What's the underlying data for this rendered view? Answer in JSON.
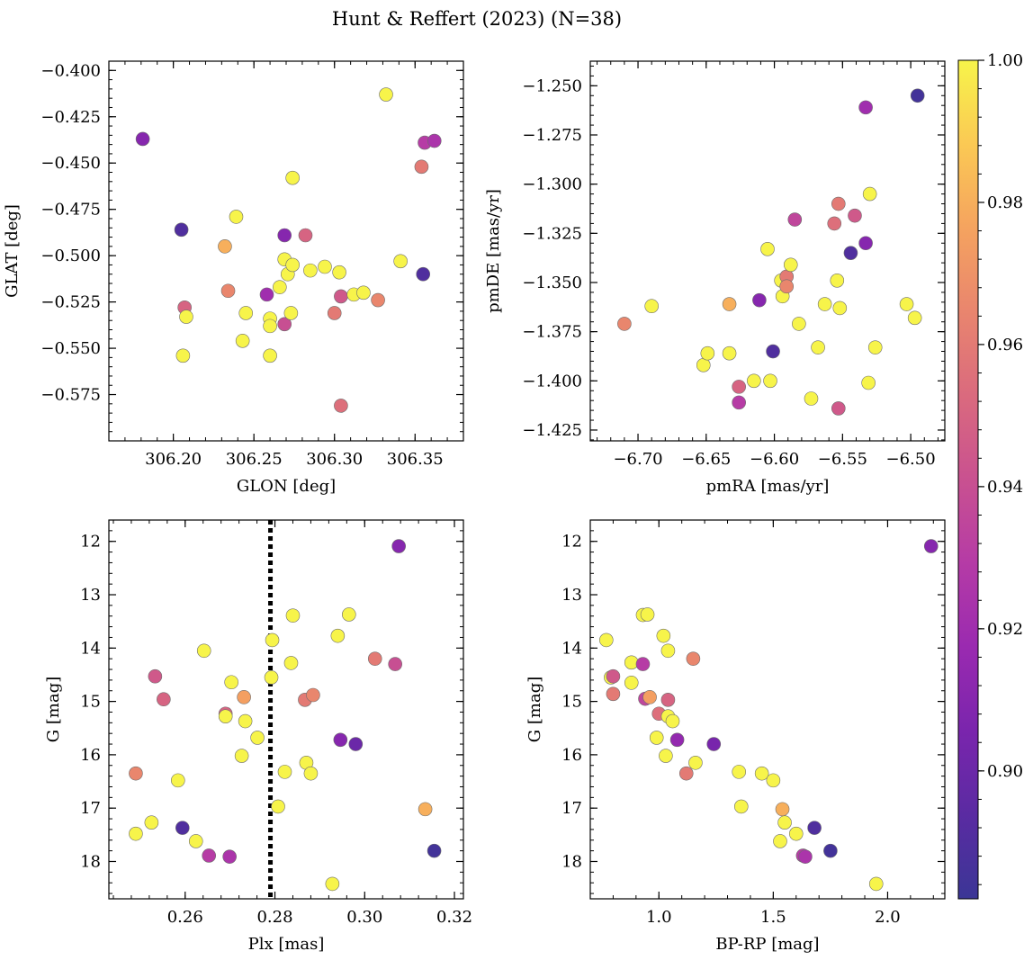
{
  "figure": {
    "title": "Hunt & Reffert (2023) (N=38)"
  },
  "colorbar": {
    "min": 0.882,
    "max": 1.0,
    "ticks": [
      0.9,
      0.92,
      0.94,
      0.96,
      0.98,
      1.0
    ],
    "tick_labels": [
      "0.90",
      "0.92",
      "0.94",
      "0.96",
      "0.98",
      "1.00"
    ],
    "colormap": "plasma"
  },
  "chart_data": [
    {
      "id": "glon-glat",
      "type": "scatter",
      "xlabel": "GLON [deg]",
      "ylabel": "GLAT [deg]",
      "xlim": [
        306.16,
        306.38
      ],
      "ylim": [
        -0.6,
        -0.395
      ],
      "y_inverted": false,
      "xticks": [
        306.2,
        306.25,
        306.3,
        306.35
      ],
      "xtick_labels": [
        "306.20",
        "306.25",
        "306.30",
        "306.35"
      ],
      "yticks": [
        -0.4,
        -0.425,
        -0.45,
        -0.475,
        -0.5,
        -0.525,
        -0.55,
        -0.575
      ],
      "ytick_labels": [
        "−0.400",
        "−0.425",
        "−0.450",
        "−0.475",
        "−0.500",
        "−0.525",
        "−0.550",
        "−0.575"
      ],
      "points": [
        {
          "x": 306.181,
          "y": -0.437,
          "c": 0.91
        },
        {
          "x": 306.205,
          "y": -0.486,
          "c": 0.89
        },
        {
          "x": 306.207,
          "y": -0.528,
          "c": 0.95
        },
        {
          "x": 306.208,
          "y": -0.533,
          "c": 1.0
        },
        {
          "x": 306.206,
          "y": -0.554,
          "c": 1.0
        },
        {
          "x": 306.232,
          "y": -0.495,
          "c": 0.98
        },
        {
          "x": 306.234,
          "y": -0.519,
          "c": 0.965
        },
        {
          "x": 306.239,
          "y": -0.479,
          "c": 1.0
        },
        {
          "x": 306.243,
          "y": -0.546,
          "c": 1.0
        },
        {
          "x": 306.245,
          "y": -0.531,
          "c": 1.0
        },
        {
          "x": 306.258,
          "y": -0.521,
          "c": 0.92
        },
        {
          "x": 306.26,
          "y": -0.534,
          "c": 1.0
        },
        {
          "x": 306.26,
          "y": -0.538,
          "c": 1.0
        },
        {
          "x": 306.26,
          "y": -0.554,
          "c": 1.0
        },
        {
          "x": 306.266,
          "y": -0.517,
          "c": 1.0
        },
        {
          "x": 306.269,
          "y": -0.489,
          "c": 0.91
        },
        {
          "x": 306.269,
          "y": -0.502,
          "c": 1.0
        },
        {
          "x": 306.269,
          "y": -0.537,
          "c": 0.94
        },
        {
          "x": 306.271,
          "y": -0.51,
          "c": 1.0
        },
        {
          "x": 306.273,
          "y": -0.531,
          "c": 1.0
        },
        {
          "x": 306.274,
          "y": -0.505,
          "c": 1.0
        },
        {
          "x": 306.274,
          "y": -0.458,
          "c": 1.0
        },
        {
          "x": 306.282,
          "y": -0.489,
          "c": 0.95
        },
        {
          "x": 306.285,
          "y": -0.508,
          "c": 1.0
        },
        {
          "x": 306.294,
          "y": -0.506,
          "c": 1.0
        },
        {
          "x": 306.3,
          "y": -0.531,
          "c": 0.96
        },
        {
          "x": 306.303,
          "y": -0.509,
          "c": 1.0
        },
        {
          "x": 306.304,
          "y": -0.522,
          "c": 0.945
        },
        {
          "x": 306.304,
          "y": -0.581,
          "c": 0.955
        },
        {
          "x": 306.312,
          "y": -0.521,
          "c": 1.0
        },
        {
          "x": 306.318,
          "y": -0.52,
          "c": 1.0
        },
        {
          "x": 306.327,
          "y": -0.524,
          "c": 0.965
        },
        {
          "x": 306.332,
          "y": -0.413,
          "c": 1.0
        },
        {
          "x": 306.341,
          "y": -0.503,
          "c": 1.0
        },
        {
          "x": 306.354,
          "y": -0.452,
          "c": 0.96
        },
        {
          "x": 306.355,
          "y": -0.51,
          "c": 0.89
        },
        {
          "x": 306.356,
          "y": -0.439,
          "c": 0.93
        },
        {
          "x": 306.362,
          "y": -0.438,
          "c": 0.925
        }
      ]
    },
    {
      "id": "pm",
      "type": "scatter",
      "xlabel": "pmRA [mas/yr]",
      "ylabel": "pmDE [mas/yr]",
      "xlim": [
        -6.735,
        -6.475
      ],
      "ylim": [
        -1.4305,
        -1.2375
      ],
      "y_inverted": false,
      "xticks": [
        -6.7,
        -6.65,
        -6.6,
        -6.55,
        -6.5
      ],
      "xtick_labels": [
        "−6.70",
        "−6.65",
        "−6.60",
        "−6.55",
        "−6.50"
      ],
      "yticks": [
        -1.25,
        -1.275,
        -1.3,
        -1.325,
        -1.35,
        -1.375,
        -1.4,
        -1.425
      ],
      "ytick_labels": [
        "−1.250",
        "−1.275",
        "−1.300",
        "−1.325",
        "−1.350",
        "−1.375",
        "−1.400",
        "−1.425"
      ],
      "points": [
        {
          "x": -6.71,
          "y": -1.371,
          "c": 0.965
        },
        {
          "x": -6.69,
          "y": -1.362,
          "c": 1.0
        },
        {
          "x": -6.652,
          "y": -1.392,
          "c": 1.0
        },
        {
          "x": -6.649,
          "y": -1.386,
          "c": 1.0
        },
        {
          "x": -6.633,
          "y": -1.361,
          "c": 0.98
        },
        {
          "x": -6.633,
          "y": -1.386,
          "c": 1.0
        },
        {
          "x": -6.626,
          "y": -1.403,
          "c": 0.95
        },
        {
          "x": -6.626,
          "y": -1.411,
          "c": 0.93
        },
        {
          "x": -6.615,
          "y": -1.4,
          "c": 1.0
        },
        {
          "x": -6.611,
          "y": -1.359,
          "c": 0.91
        },
        {
          "x": -6.605,
          "y": -1.333,
          "c": 1.0
        },
        {
          "x": -6.603,
          "y": -1.4,
          "c": 1.0
        },
        {
          "x": -6.601,
          "y": -1.385,
          "c": 0.89
        },
        {
          "x": -6.595,
          "y": -1.349,
          "c": 1.0
        },
        {
          "x": -6.594,
          "y": -1.357,
          "c": 1.0
        },
        {
          "x": -6.591,
          "y": -1.347,
          "c": 0.96
        },
        {
          "x": -6.591,
          "y": -1.352,
          "c": 0.965
        },
        {
          "x": -6.588,
          "y": -1.341,
          "c": 1.0
        },
        {
          "x": -6.585,
          "y": -1.318,
          "c": 0.935
        },
        {
          "x": -6.582,
          "y": -1.371,
          "c": 1.0
        },
        {
          "x": -6.573,
          "y": -1.409,
          "c": 1.0
        },
        {
          "x": -6.568,
          "y": -1.383,
          "c": 1.0
        },
        {
          "x": -6.563,
          "y": -1.361,
          "c": 1.0
        },
        {
          "x": -6.556,
          "y": -1.32,
          "c": 0.955
        },
        {
          "x": -6.554,
          "y": -1.349,
          "c": 1.0
        },
        {
          "x": -6.553,
          "y": -1.31,
          "c": 0.96
        },
        {
          "x": -6.553,
          "y": -1.414,
          "c": 0.945
        },
        {
          "x": -6.552,
          "y": -1.363,
          "c": 1.0
        },
        {
          "x": -6.544,
          "y": -1.335,
          "c": 0.89
        },
        {
          "x": -6.541,
          "y": -1.316,
          "c": 0.945
        },
        {
          "x": -6.533,
          "y": -1.33,
          "c": 0.91
        },
        {
          "x": -6.533,
          "y": -1.261,
          "c": 0.92
        },
        {
          "x": -6.531,
          "y": -1.401,
          "c": 1.0
        },
        {
          "x": -6.53,
          "y": -1.305,
          "c": 1.0
        },
        {
          "x": -6.526,
          "y": -1.383,
          "c": 1.0
        },
        {
          "x": -6.503,
          "y": -1.361,
          "c": 1.0
        },
        {
          "x": -6.497,
          "y": -1.368,
          "c": 1.0
        },
        {
          "x": -6.495,
          "y": -1.255,
          "c": 0.885
        }
      ]
    },
    {
      "id": "plx-g",
      "type": "scatter",
      "xlabel": "Plx [mas]",
      "ylabel": "G [mag]",
      "xlim": [
        0.243,
        0.322
      ],
      "ylim": [
        18.7,
        11.6
      ],
      "y_inverted": true,
      "xticks": [
        0.26,
        0.28,
        0.3,
        0.32
      ],
      "xtick_labels": [
        "0.26",
        "0.28",
        "0.30",
        "0.32"
      ],
      "yticks": [
        12,
        13,
        14,
        15,
        16,
        17,
        18
      ],
      "ytick_labels": [
        "12",
        "13",
        "14",
        "15",
        "16",
        "17",
        "18"
      ],
      "vline": {
        "x": 0.279,
        "style": "dotted"
      },
      "points": [
        {
          "x": 0.249,
          "y": 16.35,
          "c": 0.965
        },
        {
          "x": 0.249,
          "y": 17.48,
          "c": 1.0
        },
        {
          "x": 0.2525,
          "y": 17.27,
          "c": 1.0
        },
        {
          "x": 0.2533,
          "y": 14.53,
          "c": 0.945
        },
        {
          "x": 0.2552,
          "y": 14.96,
          "c": 0.95
        },
        {
          "x": 0.2584,
          "y": 16.48,
          "c": 1.0
        },
        {
          "x": 0.2594,
          "y": 17.37,
          "c": 0.89
        },
        {
          "x": 0.2624,
          "y": 17.62,
          "c": 1.0
        },
        {
          "x": 0.2642,
          "y": 14.05,
          "c": 1.0
        },
        {
          "x": 0.2653,
          "y": 17.89,
          "c": 0.93
        },
        {
          "x": 0.269,
          "y": 15.23,
          "c": 0.95
        },
        {
          "x": 0.269,
          "y": 15.28,
          "c": 1.0
        },
        {
          "x": 0.2699,
          "y": 17.91,
          "c": 0.925
        },
        {
          "x": 0.2703,
          "y": 14.64,
          "c": 1.0
        },
        {
          "x": 0.2726,
          "y": 16.02,
          "c": 1.0
        },
        {
          "x": 0.2731,
          "y": 14.92,
          "c": 0.975
        },
        {
          "x": 0.2734,
          "y": 15.37,
          "c": 1.0
        },
        {
          "x": 0.2761,
          "y": 15.68,
          "c": 1.0
        },
        {
          "x": 0.2792,
          "y": 14.55,
          "c": 1.0
        },
        {
          "x": 0.2794,
          "y": 13.85,
          "c": 1.0
        },
        {
          "x": 0.2807,
          "y": 16.97,
          "c": 1.0
        },
        {
          "x": 0.2822,
          "y": 16.32,
          "c": 1.0
        },
        {
          "x": 0.2836,
          "y": 14.28,
          "c": 1.0
        },
        {
          "x": 0.284,
          "y": 13.39,
          "c": 1.0
        },
        {
          "x": 0.2867,
          "y": 14.97,
          "c": 0.96
        },
        {
          "x": 0.287,
          "y": 16.15,
          "c": 1.0
        },
        {
          "x": 0.288,
          "y": 16.35,
          "c": 1.0
        },
        {
          "x": 0.2885,
          "y": 14.88,
          "c": 0.965
        },
        {
          "x": 0.2928,
          "y": 18.42,
          "c": 1.0
        },
        {
          "x": 0.294,
          "y": 13.77,
          "c": 1.0
        },
        {
          "x": 0.2946,
          "y": 15.72,
          "c": 0.91
        },
        {
          "x": 0.2965,
          "y": 13.37,
          "c": 1.0
        },
        {
          "x": 0.298,
          "y": 15.8,
          "c": 0.9
        },
        {
          "x": 0.3023,
          "y": 14.2,
          "c": 0.96
        },
        {
          "x": 0.3068,
          "y": 14.3,
          "c": 0.94
        },
        {
          "x": 0.3076,
          "y": 12.09,
          "c": 0.91
        },
        {
          "x": 0.3135,
          "y": 17.02,
          "c": 0.98
        },
        {
          "x": 0.3155,
          "y": 17.8,
          "c": 0.885
        }
      ]
    },
    {
      "id": "cmd",
      "type": "scatter",
      "xlabel": "BP-RP [mag]",
      "ylabel": "G [mag]",
      "xlim": [
        0.7,
        2.25
      ],
      "ylim": [
        18.7,
        11.6
      ],
      "y_inverted": true,
      "xticks": [
        1.0,
        1.5,
        2.0
      ],
      "xtick_labels": [
        "1.0",
        "1.5",
        "2.0"
      ],
      "yticks": [
        12,
        13,
        14,
        15,
        16,
        17,
        18
      ],
      "ytick_labels": [
        "12",
        "13",
        "14",
        "15",
        "16",
        "17",
        "18"
      ],
      "points": [
        {
          "x": 0.77,
          "y": 13.85,
          "c": 1.0
        },
        {
          "x": 0.79,
          "y": 14.55,
          "c": 1.0
        },
        {
          "x": 0.8,
          "y": 14.53,
          "c": 0.945
        },
        {
          "x": 0.8,
          "y": 14.86,
          "c": 0.96
        },
        {
          "x": 0.88,
          "y": 14.27,
          "c": 1.0
        },
        {
          "x": 0.88,
          "y": 14.65,
          "c": 1.0
        },
        {
          "x": 0.93,
          "y": 13.38,
          "c": 1.0
        },
        {
          "x": 0.93,
          "y": 14.3,
          "c": 0.93
        },
        {
          "x": 0.94,
          "y": 14.95,
          "c": 0.935
        },
        {
          "x": 0.95,
          "y": 13.37,
          "c": 1.0
        },
        {
          "x": 0.96,
          "y": 14.92,
          "c": 0.975
        },
        {
          "x": 0.99,
          "y": 15.68,
          "c": 1.0
        },
        {
          "x": 1.0,
          "y": 15.23,
          "c": 0.955
        },
        {
          "x": 1.02,
          "y": 13.77,
          "c": 1.0
        },
        {
          "x": 1.03,
          "y": 16.02,
          "c": 1.0
        },
        {
          "x": 1.04,
          "y": 14.05,
          "c": 1.0
        },
        {
          "x": 1.04,
          "y": 14.97,
          "c": 0.95
        },
        {
          "x": 1.04,
          "y": 15.28,
          "c": 1.0
        },
        {
          "x": 1.06,
          "y": 15.37,
          "c": 1.0
        },
        {
          "x": 1.08,
          "y": 15.72,
          "c": 0.915
        },
        {
          "x": 1.12,
          "y": 16.35,
          "c": 0.96
        },
        {
          "x": 1.15,
          "y": 14.2,
          "c": 0.965
        },
        {
          "x": 1.16,
          "y": 16.15,
          "c": 1.0
        },
        {
          "x": 1.24,
          "y": 15.8,
          "c": 0.905
        },
        {
          "x": 1.35,
          "y": 16.32,
          "c": 1.0
        },
        {
          "x": 1.36,
          "y": 16.97,
          "c": 1.0
        },
        {
          "x": 1.45,
          "y": 16.35,
          "c": 1.0
        },
        {
          "x": 1.5,
          "y": 16.48,
          "c": 1.0
        },
        {
          "x": 1.53,
          "y": 17.62,
          "c": 1.0
        },
        {
          "x": 1.54,
          "y": 17.02,
          "c": 0.98
        },
        {
          "x": 1.55,
          "y": 17.27,
          "c": 1.0
        },
        {
          "x": 1.6,
          "y": 17.48,
          "c": 1.0
        },
        {
          "x": 1.63,
          "y": 17.89,
          "c": 0.93
        },
        {
          "x": 1.64,
          "y": 17.91,
          "c": 0.925
        },
        {
          "x": 1.68,
          "y": 17.37,
          "c": 0.89
        },
        {
          "x": 1.75,
          "y": 17.8,
          "c": 0.885
        },
        {
          "x": 1.95,
          "y": 18.42,
          "c": 1.0
        },
        {
          "x": 2.19,
          "y": 12.09,
          "c": 0.91
        }
      ]
    }
  ]
}
